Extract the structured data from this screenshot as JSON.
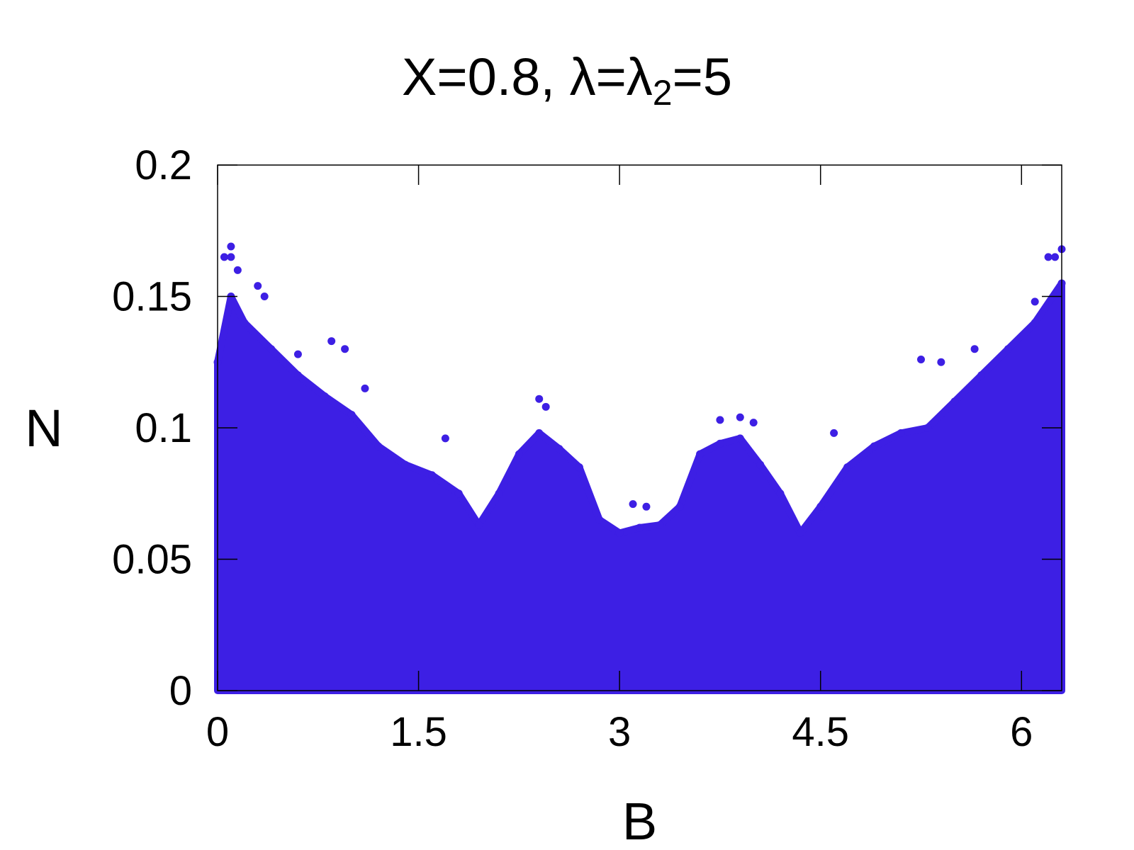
{
  "chart_data": {
    "type": "scatter",
    "title_parts": [
      "X=0.8, λ=λ",
      "2",
      "=5"
    ],
    "xlabel": "B",
    "ylabel": "N",
    "xlim": [
      0,
      6.3
    ],
    "ylim": [
      0,
      0.2
    ],
    "x_ticks": [
      "0",
      "1.5",
      "3",
      "4.5",
      "6"
    ],
    "x_tick_values": [
      0,
      1.5,
      3,
      4.5,
      6
    ],
    "y_ticks": [
      "0",
      "0.05",
      "0.1",
      "0.15",
      "0.2"
    ],
    "y_tick_values": [
      0,
      0.05,
      0.1,
      0.15,
      0.2
    ],
    "grid": false,
    "series_color": "#3d1fe4",
    "envelope": {
      "x": [
        0.0,
        0.1,
        0.2,
        0.4,
        0.6,
        0.8,
        1.0,
        1.2,
        1.4,
        1.6,
        1.8,
        1.95,
        2.1,
        2.25,
        2.4,
        2.55,
        2.7,
        2.85,
        3.0,
        3.15,
        3.3,
        3.45,
        3.6,
        3.75,
        3.9,
        4.05,
        4.2,
        4.35,
        4.5,
        4.7,
        4.9,
        5.1,
        5.3,
        5.5,
        5.7,
        5.9,
        6.1,
        6.3
      ],
      "y": [
        0.125,
        0.15,
        0.14,
        0.13,
        0.12,
        0.112,
        0.105,
        0.093,
        0.086,
        0.082,
        0.075,
        0.063,
        0.075,
        0.09,
        0.098,
        0.092,
        0.085,
        0.065,
        0.06,
        0.062,
        0.063,
        0.07,
        0.09,
        0.094,
        0.096,
        0.086,
        0.075,
        0.06,
        0.07,
        0.085,
        0.093,
        0.098,
        0.1,
        0.11,
        0.12,
        0.13,
        0.14,
        0.155
      ]
    },
    "outliers": {
      "x": [
        0.05,
        0.1,
        0.1,
        0.15,
        0.3,
        0.35,
        0.6,
        0.85,
        0.95,
        1.1,
        1.7,
        2.4,
        2.45,
        3.1,
        3.2,
        3.75,
        3.9,
        4.0,
        4.6,
        5.25,
        5.4,
        5.65,
        6.1,
        6.2,
        6.25,
        6.3
      ],
      "y": [
        0.165,
        0.169,
        0.165,
        0.16,
        0.154,
        0.15,
        0.128,
        0.133,
        0.13,
        0.115,
        0.096,
        0.111,
        0.108,
        0.071,
        0.07,
        0.103,
        0.104,
        0.102,
        0.098,
        0.126,
        0.125,
        0.13,
        0.148,
        0.165,
        0.165,
        0.168
      ]
    }
  }
}
